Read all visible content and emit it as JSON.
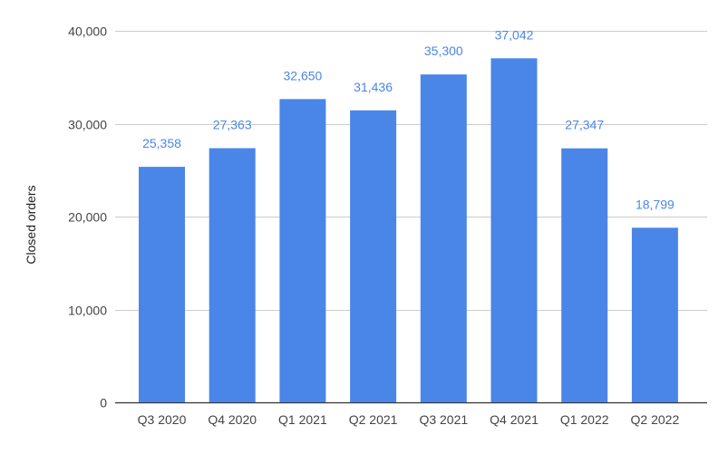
{
  "chart_data": {
    "type": "bar",
    "title": "",
    "xlabel": "",
    "ylabel": "Closed orders",
    "categories": [
      "Q3 2020",
      "Q4 2020",
      "Q1 2021",
      "Q2 2021",
      "Q3 2021",
      "Q4 2021",
      "Q1 2022",
      "Q2 2022"
    ],
    "values": [
      25358,
      27363,
      32650,
      31436,
      35300,
      37042,
      27347,
      18799
    ],
    "data_labels": [
      "25,358",
      "27,363",
      "32,650",
      "31,436",
      "35,300",
      "37,042",
      "27,347",
      "18,799"
    ],
    "ylim": [
      0,
      40000
    ],
    "yticks": [
      0,
      10000,
      20000,
      30000,
      40000
    ],
    "ytick_labels": [
      "0",
      "10,000",
      "20,000",
      "30,000",
      "40,000"
    ],
    "grid": true,
    "legend": "none",
    "colors": {
      "bar": "#4a86e8",
      "data_label": "#4a86e8",
      "grid": "#cccccc",
      "baseline": "#333333"
    }
  }
}
